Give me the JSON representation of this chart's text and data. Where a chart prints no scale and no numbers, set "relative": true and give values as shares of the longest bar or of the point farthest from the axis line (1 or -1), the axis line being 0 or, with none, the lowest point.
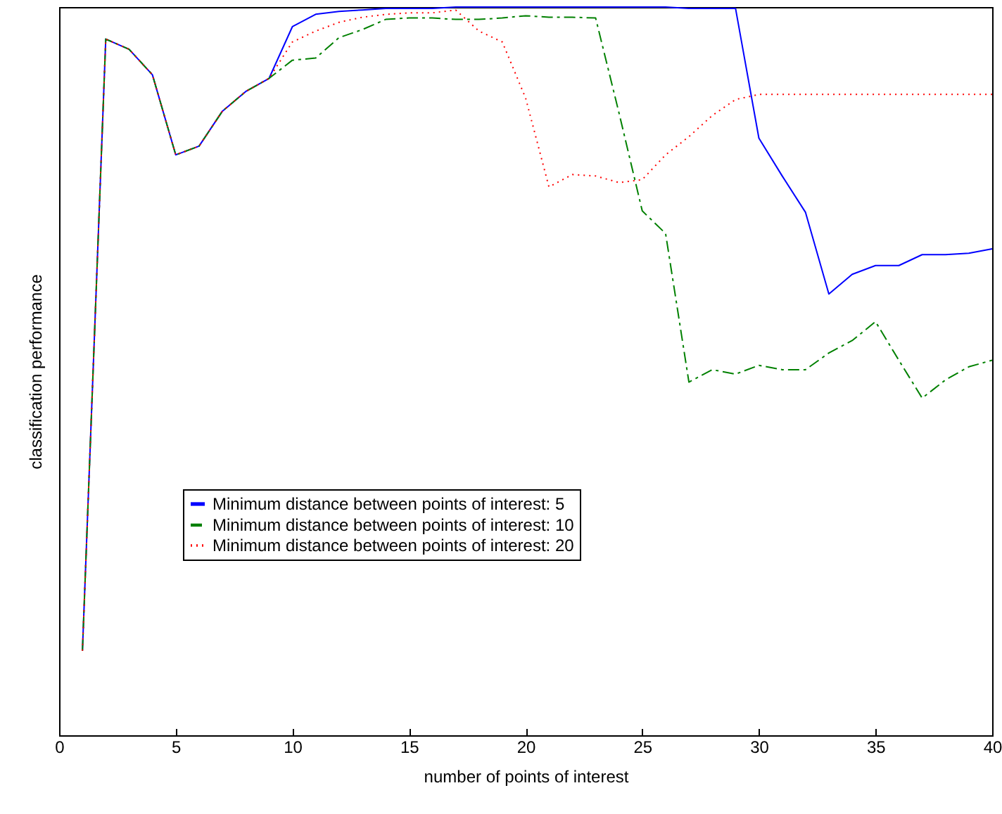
{
  "chart_data": {
    "type": "line",
    "relative": true,
    "xlabel": "number of points of interest",
    "ylabel": "classification performance",
    "xlim": [
      0,
      40
    ],
    "xticks": [
      0,
      5,
      10,
      15,
      20,
      25,
      30,
      35,
      40
    ],
    "grid": false,
    "legend": "bottom left",
    "marker": "none",
    "x": [
      1,
      2,
      3,
      4,
      5,
      6,
      7,
      8,
      9,
      10,
      11,
      12,
      13,
      14,
      15,
      16,
      17,
      18,
      19,
      20,
      21,
      22,
      23,
      24,
      25,
      26,
      27,
      28,
      29,
      30,
      31,
      32,
      33,
      34,
      35,
      36,
      37,
      38,
      39,
      40
    ],
    "series": [
      {
        "name": "Minimum distance between points of interest: 5",
        "color": "#0000ff",
        "line_style": "solid",
        "values": [
          0.116,
          0.956,
          0.942,
          0.907,
          0.797,
          0.809,
          0.857,
          0.884,
          0.902,
          0.973,
          0.99,
          0.994,
          0.996,
          0.998,
          0.998,
          0.998,
          1,
          1,
          1,
          1,
          1,
          1,
          1,
          1,
          1,
          1,
          0.998,
          0.998,
          0.998,
          0.82,
          0.768,
          0.718,
          0.606,
          0.633,
          0.645,
          0.645,
          0.66,
          0.66,
          0.662,
          0.668
        ]
      },
      {
        "name": "Minimum distance between points of interest: 10",
        "color": "#008000",
        "line_style": "dashed",
        "values": [
          0.116,
          0.956,
          0.942,
          0.907,
          0.797,
          0.809,
          0.857,
          0.884,
          0.902,
          0.927,
          0.93,
          0.958,
          0.969,
          0.983,
          0.985,
          0.985,
          0.983,
          0.983,
          0.985,
          0.988,
          0.986,
          0.986,
          0.985,
          0.855,
          0.72,
          0.689,
          0.485,
          0.502,
          0.496,
          0.508,
          0.502,
          0.502,
          0.525,
          0.542,
          0.568,
          0.515,
          0.463,
          0.488,
          0.506,
          0.515
        ]
      },
      {
        "name": "Minimum distance between points of interest: 20",
        "color": "#ff0000",
        "line_style": "dotted",
        "values": [
          0.116,
          0.956,
          0.942,
          0.907,
          0.797,
          0.809,
          0.857,
          0.884,
          0.902,
          0.952,
          0.967,
          0.979,
          0.986,
          0.99,
          0.992,
          0.992,
          0.996,
          0.967,
          0.952,
          0.875,
          0.753,
          0.77,
          0.768,
          0.759,
          0.763,
          0.797,
          0.822,
          0.851,
          0.873,
          0.88,
          0.88,
          0.88,
          0.88,
          0.88,
          0.88,
          0.88,
          0.88,
          0.88,
          0.88,
          0.88
        ]
      }
    ]
  }
}
